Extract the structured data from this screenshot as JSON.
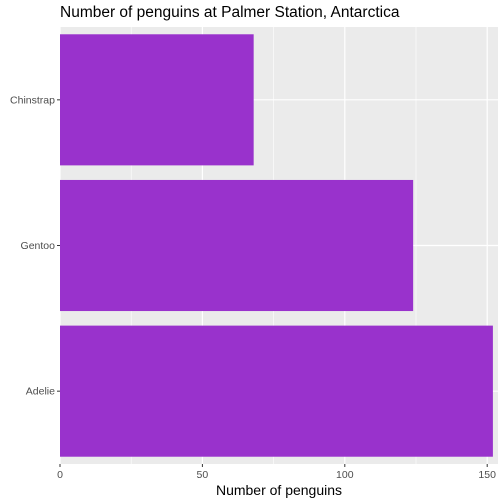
{
  "chart_data": {
    "type": "bar",
    "orientation": "horizontal",
    "title": "Number of penguins at Palmer Station, Antarctica",
    "xlabel": "Number of penguins",
    "ylabel": "",
    "categories": [
      "Adelie",
      "Gentoo",
      "Chinstrap"
    ],
    "values": [
      152,
      124,
      68
    ],
    "xlim": [
      0,
      152
    ],
    "xticks": [
      0,
      50,
      100,
      150
    ],
    "xtick_labels": [
      "0",
      "50",
      "100",
      "150"
    ],
    "grid": true,
    "legend": "none",
    "colors": {
      "bar": "#9932CC",
      "panel_background": "#EBEBEB",
      "grid_major": "#FFFFFF",
      "tick_text": "#4D4D4D"
    }
  }
}
